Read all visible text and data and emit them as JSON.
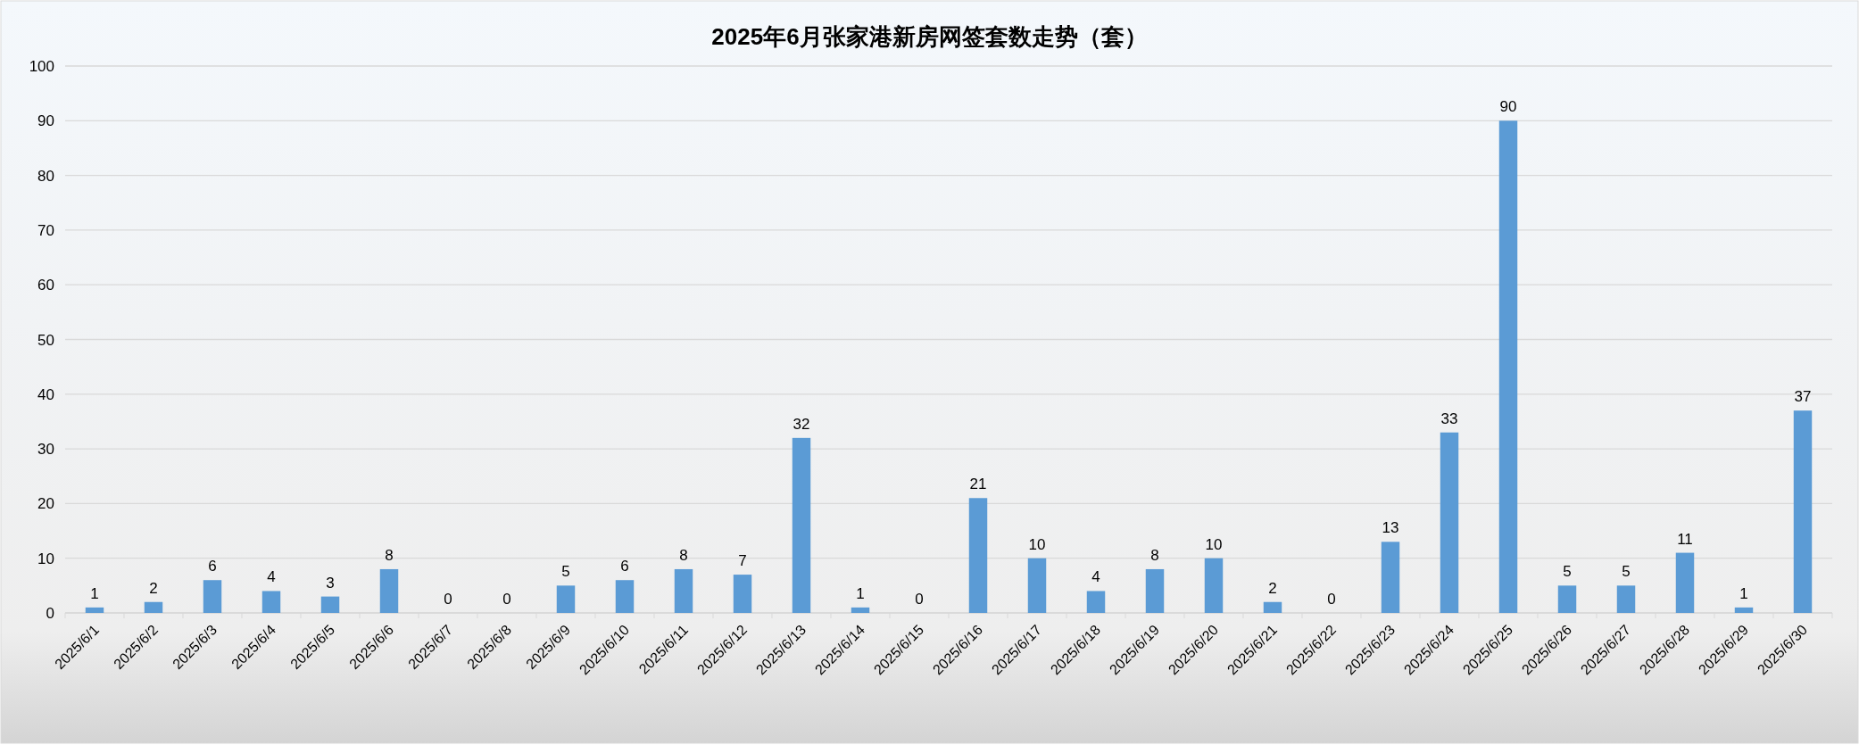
{
  "chart_data": {
    "type": "bar",
    "title": "2025年6月张家港新房网签套数走势（套）",
    "categories": [
      "2025/6/1",
      "2025/6/2",
      "2025/6/3",
      "2025/6/4",
      "2025/6/5",
      "2025/6/6",
      "2025/6/7",
      "2025/6/8",
      "2025/6/9",
      "2025/6/10",
      "2025/6/11",
      "2025/6/12",
      "2025/6/13",
      "2025/6/14",
      "2025/6/15",
      "2025/6/16",
      "2025/6/17",
      "2025/6/18",
      "2025/6/19",
      "2025/6/20",
      "2025/6/21",
      "2025/6/22",
      "2025/6/23",
      "2025/6/24",
      "2025/6/25",
      "2025/6/26",
      "2025/6/27",
      "2025/6/28",
      "2025/6/29",
      "2025/6/30"
    ],
    "values": [
      1,
      2,
      6,
      4,
      3,
      8,
      0,
      0,
      5,
      6,
      8,
      7,
      32,
      1,
      0,
      21,
      10,
      4,
      8,
      10,
      2,
      0,
      13,
      33,
      90,
      5,
      5,
      11,
      1,
      37
    ],
    "color": "#5b9bd5",
    "ylim": [
      0,
      100
    ],
    "yticks": [
      0,
      10,
      20,
      30,
      40,
      50,
      60,
      70,
      80,
      90,
      100
    ],
    "grid": "y",
    "data_labels": true
  }
}
